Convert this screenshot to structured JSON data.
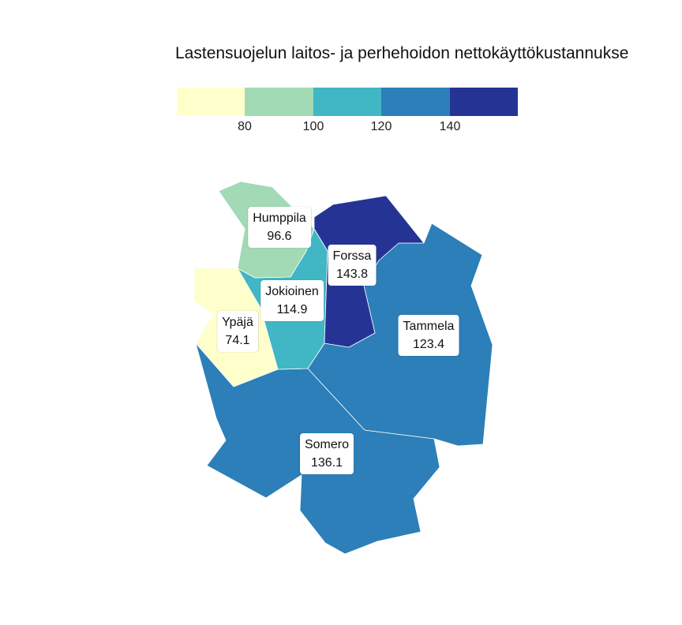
{
  "title": "Lastensuojelun laitos- ja perhehoidon nettokäyttökustannukse",
  "legend": {
    "colors": [
      "#ffffcc",
      "#a1dab4",
      "#41b6c4",
      "#2c7fb8",
      "#253494"
    ],
    "ticks": [
      "80",
      "100",
      "120",
      "140"
    ]
  },
  "regions": [
    {
      "name": "Humppila",
      "value": "96.6",
      "color": "#a1dab4"
    },
    {
      "name": "Forssa",
      "value": "143.8",
      "color": "#253494"
    },
    {
      "name": "Jokioinen",
      "value": "114.9",
      "color": "#41b6c4"
    },
    {
      "name": "Ypäjä",
      "value": "74.1",
      "color": "#ffffcc"
    },
    {
      "name": "Tammela",
      "value": "123.4",
      "color": "#2c7fb8"
    },
    {
      "name": "Somero",
      "value": "136.1",
      "color": "#2c7fb8"
    }
  ]
}
